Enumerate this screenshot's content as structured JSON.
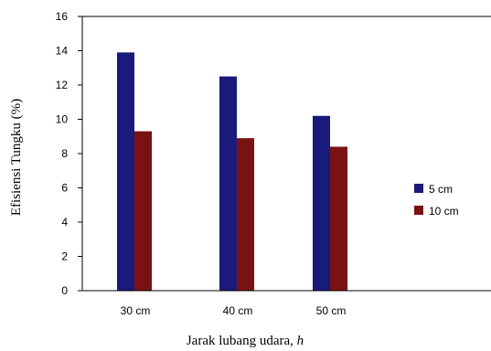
{
  "chart_data": {
    "type": "bar",
    "title": "",
    "xlabel": "Jarak lubang udara, ",
    "xlabel_var": "h",
    "ylabel": "Efisiensi  Tungku  (%)",
    "categories": [
      "30 cm",
      "40 cm",
      "50 cm"
    ],
    "series": [
      {
        "name": "5 cm",
        "color": "#1a1a7a",
        "values": [
          13.9,
          12.5,
          10.2
        ]
      },
      {
        "name": "10 cm",
        "color": "#7a1212",
        "values": [
          9.3,
          8.9,
          8.4
        ]
      }
    ],
    "ylim": [
      0,
      16
    ],
    "yticks": [
      0,
      2,
      4,
      6,
      8,
      10,
      12,
      14,
      16
    ],
    "grid": false,
    "legend_position": "right"
  }
}
